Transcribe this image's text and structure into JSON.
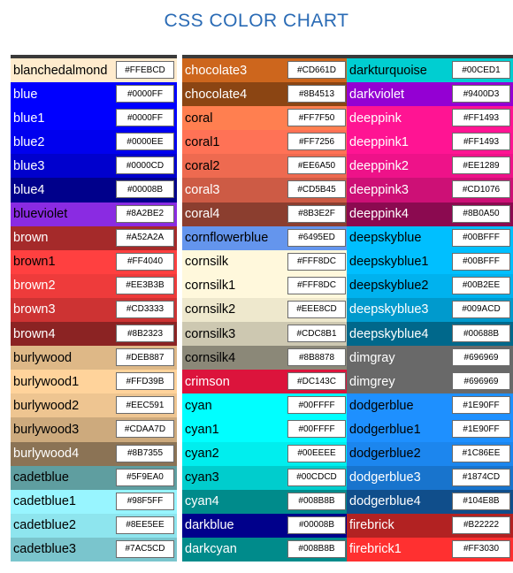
{
  "title": "CSS COLOR CHART",
  "columns": [
    [
      {
        "name": "blanchedalmond",
        "hex": "#FFEBCD",
        "bg": "#FFEBCD",
        "fg": "#000000"
      },
      {
        "name": "blue",
        "hex": "#0000FF",
        "bg": "#0000FF",
        "fg": "#FFFFFF"
      },
      {
        "name": "blue1",
        "hex": "#0000FF",
        "bg": "#0000FF",
        "fg": "#FFFFFF"
      },
      {
        "name": "blue2",
        "hex": "#0000EE",
        "bg": "#0000EE",
        "fg": "#FFFFFF"
      },
      {
        "name": "blue3",
        "hex": "#0000CD",
        "bg": "#0000CD",
        "fg": "#FFFFFF"
      },
      {
        "name": "blue4",
        "hex": "#00008B",
        "bg": "#00008B",
        "fg": "#FFFFFF"
      },
      {
        "name": "blueviolet",
        "hex": "#8A2BE2",
        "bg": "#8A2BE2",
        "fg": "#000000"
      },
      {
        "name": "brown",
        "hex": "#A52A2A",
        "bg": "#A52A2A",
        "fg": "#FFFFFF"
      },
      {
        "name": "brown1",
        "hex": "#FF4040",
        "bg": "#FF4040",
        "fg": "#000000"
      },
      {
        "name": "brown2",
        "hex": "#EE3B3B",
        "bg": "#EE3B3B",
        "fg": "#FFFFFF"
      },
      {
        "name": "brown3",
        "hex": "#CD3333",
        "bg": "#CD3333",
        "fg": "#FFFFFF"
      },
      {
        "name": "brown4",
        "hex": "#8B2323",
        "bg": "#8B2323",
        "fg": "#FFFFFF"
      },
      {
        "name": "burlywood",
        "hex": "#DEB887",
        "bg": "#DEB887",
        "fg": "#000000"
      },
      {
        "name": "burlywood1",
        "hex": "#FFD39B",
        "bg": "#FFD39B",
        "fg": "#000000"
      },
      {
        "name": "burlywood2",
        "hex": "#EEC591",
        "bg": "#EEC591",
        "fg": "#000000"
      },
      {
        "name": "burlywood3",
        "hex": "#CDAA7D",
        "bg": "#CDAA7D",
        "fg": "#000000"
      },
      {
        "name": "burlywood4",
        "hex": "#8B7355",
        "bg": "#8B7355",
        "fg": "#FFFFFF"
      },
      {
        "name": "cadetblue",
        "hex": "#5F9EA0",
        "bg": "#5F9EA0",
        "fg": "#000000"
      },
      {
        "name": "cadetblue1",
        "hex": "#98F5FF",
        "bg": "#98F5FF",
        "fg": "#000000"
      },
      {
        "name": "cadetblue2",
        "hex": "#8EE5EE",
        "bg": "#8EE5EE",
        "fg": "#000000"
      },
      {
        "name": "cadetblue3",
        "hex": "#7AC5CD",
        "bg": "#7AC5CD",
        "fg": "#000000"
      }
    ],
    [
      {
        "name": "chocolate3",
        "hex": "#CD661D",
        "bg": "#CD661D",
        "fg": "#FFFFFF"
      },
      {
        "name": "chocolate4",
        "hex": "#8B4513",
        "bg": "#8B4513",
        "fg": "#FFFFFF"
      },
      {
        "name": "coral",
        "hex": "#FF7F50",
        "bg": "#FF7F50",
        "fg": "#000000"
      },
      {
        "name": "coral1",
        "hex": "#FF7256",
        "bg": "#FF7256",
        "fg": "#000000"
      },
      {
        "name": "coral2",
        "hex": "#EE6A50",
        "bg": "#EE6A50",
        "fg": "#000000"
      },
      {
        "name": "coral3",
        "hex": "#CD5B45",
        "bg": "#CD5B45",
        "fg": "#FFFFFF"
      },
      {
        "name": "coral4",
        "hex": "#8B3E2F",
        "bg": "#8B3E2F",
        "fg": "#FFFFFF"
      },
      {
        "name": "cornflowerblue",
        "hex": "#6495ED",
        "bg": "#6495ED",
        "fg": "#000000"
      },
      {
        "name": "cornsilk",
        "hex": "#FFF8DC",
        "bg": "#FFF8DC",
        "fg": "#000000"
      },
      {
        "name": "cornsilk1",
        "hex": "#FFF8DC",
        "bg": "#FFF8DC",
        "fg": "#000000"
      },
      {
        "name": "cornsilk2",
        "hex": "#EEE8CD",
        "bg": "#EEE8CD",
        "fg": "#000000"
      },
      {
        "name": "cornsilk3",
        "hex": "#CDC8B1",
        "bg": "#CDC8B1",
        "fg": "#000000"
      },
      {
        "name": "cornsilk4",
        "hex": "#8B8878",
        "bg": "#8B8878",
        "fg": "#000000"
      },
      {
        "name": "crimson",
        "hex": "#DC143C",
        "bg": "#DC143C",
        "fg": "#FFFFFF"
      },
      {
        "name": "cyan",
        "hex": "#00FFFF",
        "bg": "#00FFFF",
        "fg": "#000000"
      },
      {
        "name": "cyan1",
        "hex": "#00FFFF",
        "bg": "#00FFFF",
        "fg": "#000000"
      },
      {
        "name": "cyan2",
        "hex": "#00EEEE",
        "bg": "#00EEEE",
        "fg": "#000000"
      },
      {
        "name": "cyan3",
        "hex": "#00CDCD",
        "bg": "#00CDCD",
        "fg": "#000000"
      },
      {
        "name": "cyan4",
        "hex": "#008B8B",
        "bg": "#008B8B",
        "fg": "#FFFFFF"
      },
      {
        "name": "darkblue",
        "hex": "#00008B",
        "bg": "#00008B",
        "fg": "#FFFFFF"
      },
      {
        "name": "darkcyan",
        "hex": "#008B8B",
        "bg": "#008B8B",
        "fg": "#FFFFFF"
      }
    ],
    [
      {
        "name": "darkturquoise",
        "hex": "#00CED1",
        "bg": "#00CED1",
        "fg": "#000000"
      },
      {
        "name": "darkviolet",
        "hex": "#9400D3",
        "bg": "#9400D3",
        "fg": "#FFFFFF"
      },
      {
        "name": "deeppink",
        "hex": "#FF1493",
        "bg": "#FF1493",
        "fg": "#FFFFFF"
      },
      {
        "name": "deeppink1",
        "hex": "#FF1493",
        "bg": "#FF1493",
        "fg": "#FFFFFF"
      },
      {
        "name": "deeppink2",
        "hex": "#EE1289",
        "bg": "#EE1289",
        "fg": "#FFFFFF"
      },
      {
        "name": "deeppink3",
        "hex": "#CD1076",
        "bg": "#CD1076",
        "fg": "#FFFFFF"
      },
      {
        "name": "deeppink4",
        "hex": "#8B0A50",
        "bg": "#8B0A50",
        "fg": "#FFFFFF"
      },
      {
        "name": "deepskyblue",
        "hex": "#00BFFF",
        "bg": "#00BFFF",
        "fg": "#000000"
      },
      {
        "name": "deepskyblue1",
        "hex": "#00BFFF",
        "bg": "#00BFFF",
        "fg": "#000000"
      },
      {
        "name": "deepskyblue2",
        "hex": "#00B2EE",
        "bg": "#00B2EE",
        "fg": "#000000"
      },
      {
        "name": "deepskyblue3",
        "hex": "#009ACD",
        "bg": "#009ACD",
        "fg": "#FFFFFF"
      },
      {
        "name": "deepskyblue4",
        "hex": "#00688B",
        "bg": "#00688B",
        "fg": "#FFFFFF"
      },
      {
        "name": "dimgray",
        "hex": "#696969",
        "bg": "#696969",
        "fg": "#FFFFFF"
      },
      {
        "name": "dimgrey",
        "hex": "#696969",
        "bg": "#696969",
        "fg": "#FFFFFF"
      },
      {
        "name": "dodgerblue",
        "hex": "#1E90FF",
        "bg": "#1E90FF",
        "fg": "#000000"
      },
      {
        "name": "dodgerblue1",
        "hex": "#1E90FF",
        "bg": "#1E90FF",
        "fg": "#000000"
      },
      {
        "name": "dodgerblue2",
        "hex": "#1C86EE",
        "bg": "#1C86EE",
        "fg": "#000000"
      },
      {
        "name": "dodgerblue3",
        "hex": "#1874CD",
        "bg": "#1874CD",
        "fg": "#FFFFFF"
      },
      {
        "name": "dodgerblue4",
        "hex": "#104E8B",
        "bg": "#104E8B",
        "fg": "#FFFFFF"
      },
      {
        "name": "firebrick",
        "hex": "#B22222",
        "bg": "#B22222",
        "fg": "#FFFFFF"
      },
      {
        "name": "firebrick1",
        "hex": "#FF3030",
        "bg": "#FF3030",
        "fg": "#FFFFFF"
      }
    ]
  ]
}
